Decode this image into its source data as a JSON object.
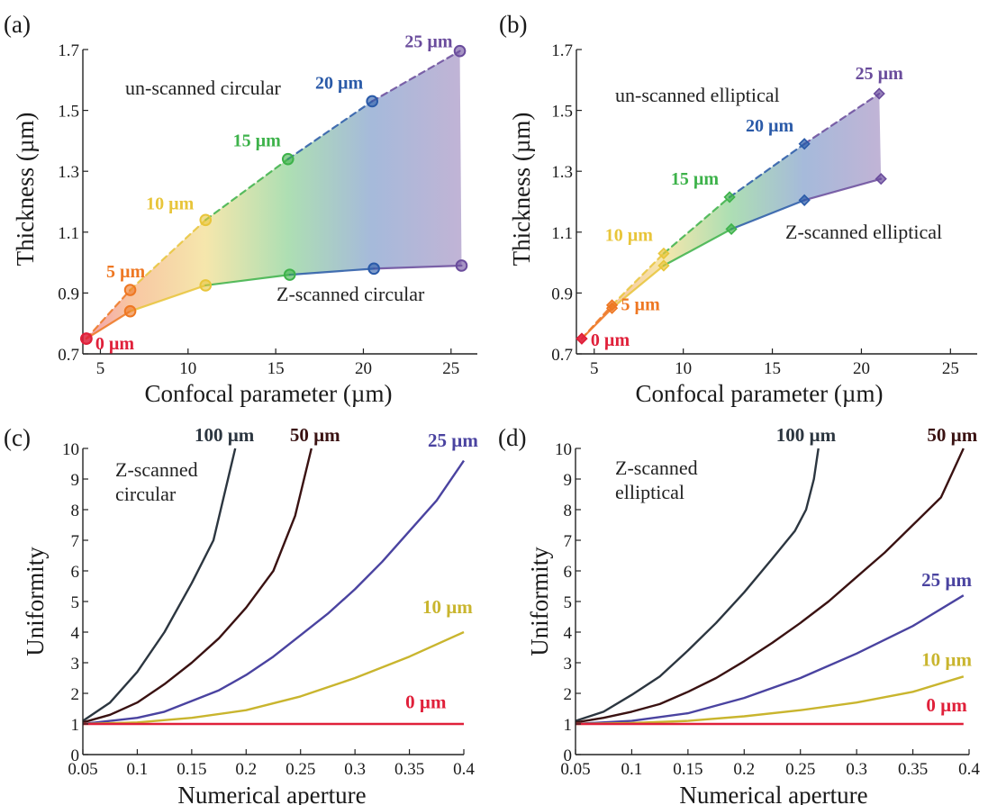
{
  "panels": [
    {
      "id": "a",
      "label": "(a)",
      "type": "line",
      "xlabel": "Confocal parameter (µm)",
      "ylabel": "Thickness (µm)",
      "xlim": [
        4,
        26.5
      ],
      "ylim": [
        0.7,
        1.7
      ],
      "xticks": [
        5,
        10,
        15,
        20,
        25
      ],
      "yticks": [
        0.7,
        0.9,
        1.1,
        1.3,
        1.5,
        1.7
      ],
      "yticks_labels": [
        "0.7",
        "0.9",
        "1.1",
        "1.3",
        "1.5",
        "1.7"
      ],
      "marker": "circle",
      "series": [
        {
          "name": "un-scanned circular",
          "style": "dashed",
          "x": [
            4.2,
            6.7,
            11.0,
            15.7,
            20.5,
            25.5
          ],
          "y": [
            0.75,
            0.91,
            1.14,
            1.34,
            1.53,
            1.695
          ]
        },
        {
          "name": "Z-scanned circular",
          "style": "solid",
          "x": [
            4.2,
            6.7,
            11.0,
            15.8,
            20.6,
            25.6
          ],
          "y": [
            0.75,
            0.84,
            0.925,
            0.96,
            0.98,
            0.99
          ]
        }
      ],
      "point_labels": [
        "0 µm",
        "5 µm",
        "10 µm",
        "15 µm",
        "20 µm",
        "25 µm"
      ],
      "colors": [
        "#e0203a",
        "#ee7722",
        "#e8c53a",
        "#3db24a",
        "#2a5aa8",
        "#6a4c9c"
      ]
    },
    {
      "id": "b",
      "label": "(b)",
      "type": "line",
      "xlabel": "Confocal parameter (µm)",
      "ylabel": "Thickness (µm)",
      "xlim": [
        4,
        26.5
      ],
      "ylim": [
        0.7,
        1.7
      ],
      "xticks": [
        5,
        10,
        15,
        20,
        25
      ],
      "yticks": [
        0.7,
        0.9,
        1.1,
        1.3,
        1.5,
        1.7
      ],
      "yticks_labels": [
        "0.7",
        "0.9",
        "1.1",
        "1.3",
        "1.5",
        "1.7"
      ],
      "marker": "diamond",
      "series": [
        {
          "name": "un-scanned elliptical",
          "style": "dashed",
          "x": [
            4.3,
            6.0,
            8.9,
            12.6,
            16.8,
            21.0
          ],
          "y": [
            0.75,
            0.86,
            1.03,
            1.215,
            1.39,
            1.555
          ]
        },
        {
          "name": "Z-scanned elliptical",
          "style": "solid",
          "x": [
            4.3,
            6.0,
            8.9,
            12.7,
            16.8,
            21.1
          ],
          "y": [
            0.75,
            0.85,
            0.99,
            1.11,
            1.205,
            1.275
          ]
        }
      ],
      "point_labels": [
        "0 µm",
        "5 µm",
        "10 µm",
        "15 µm",
        "20 µm",
        "25 µm"
      ],
      "colors": [
        "#e0203a",
        "#ee7722",
        "#e8c53a",
        "#3db24a",
        "#2a5aa8",
        "#6a4c9c"
      ]
    },
    {
      "id": "c",
      "label": "(c)",
      "type": "line",
      "annotation": "Z-scanned\ncircular",
      "xlabel": "Numerical aperture",
      "ylabel": "Uniformity",
      "xlim": [
        0.05,
        0.4
      ],
      "ylim": [
        0,
        10
      ],
      "xticks": [
        0.05,
        0.1,
        0.15,
        0.2,
        0.25,
        0.3,
        0.35,
        0.4
      ],
      "xticks_labels": [
        "0.05",
        "0.1",
        "0.15",
        "0.2",
        "0.25",
        "0.3",
        "0.35",
        "0.4"
      ],
      "yticks": [
        0,
        1,
        2,
        3,
        4,
        5,
        6,
        7,
        8,
        9,
        10
      ],
      "series": [
        {
          "name": "100 µm",
          "color": "#2c3640",
          "x": [
            0.05,
            0.075,
            0.1,
            0.125,
            0.15,
            0.17,
            0.18,
            0.19
          ],
          "y": [
            1.1,
            1.7,
            2.7,
            4.0,
            5.6,
            7.0,
            8.5,
            10.0
          ]
        },
        {
          "name": "50 µm",
          "color": "#3a1212",
          "x": [
            0.05,
            0.075,
            0.1,
            0.125,
            0.15,
            0.175,
            0.2,
            0.225,
            0.245,
            0.26
          ],
          "y": [
            1.05,
            1.3,
            1.7,
            2.3,
            3.0,
            3.8,
            4.8,
            6.0,
            7.8,
            10.0
          ]
        },
        {
          "name": "25 µm",
          "color": "#4a43a0",
          "x": [
            0.05,
            0.075,
            0.1,
            0.125,
            0.15,
            0.175,
            0.2,
            0.225,
            0.25,
            0.275,
            0.3,
            0.325,
            0.35,
            0.375,
            0.4
          ],
          "y": [
            1.0,
            1.1,
            1.2,
            1.4,
            1.75,
            2.1,
            2.6,
            3.2,
            3.9,
            4.6,
            5.4,
            6.3,
            7.3,
            8.3,
            9.6
          ]
        },
        {
          "name": "10 µm",
          "color": "#c9b52e",
          "x": [
            0.05,
            0.1,
            0.15,
            0.2,
            0.25,
            0.3,
            0.35,
            0.4
          ],
          "y": [
            1.0,
            1.05,
            1.2,
            1.45,
            1.9,
            2.5,
            3.2,
            4.0
          ]
        },
        {
          "name": "0 µm",
          "color": "#e0203a",
          "x": [
            0.05,
            0.4
          ],
          "y": [
            1.0,
            1.0
          ]
        }
      ]
    },
    {
      "id": "d",
      "label": "(d)",
      "type": "line",
      "annotation": "Z-scanned\nelliptical",
      "xlabel": "Numerical aperture",
      "ylabel": "Uniformity",
      "xlim": [
        0.05,
        0.4
      ],
      "ylim": [
        0,
        10
      ],
      "xticks": [
        0.05,
        0.1,
        0.15,
        0.2,
        0.25,
        0.3,
        0.35,
        0.4
      ],
      "xticks_labels": [
        "0.05",
        "0.1",
        "0.15",
        "0.2",
        "0.25",
        "0.3",
        "0.35",
        "0.4"
      ],
      "yticks": [
        0,
        1,
        2,
        3,
        4,
        5,
        6,
        7,
        8,
        9,
        10
      ],
      "series": [
        {
          "name": "100 µm",
          "color": "#2c3640",
          "x": [
            0.05,
            0.075,
            0.1,
            0.125,
            0.15,
            0.175,
            0.2,
            0.225,
            0.245,
            0.255,
            0.262,
            0.266
          ],
          "y": [
            1.1,
            1.4,
            1.95,
            2.55,
            3.4,
            4.3,
            5.3,
            6.4,
            7.3,
            8.0,
            9.0,
            10.0
          ]
        },
        {
          "name": "50 µm",
          "color": "#3a1212",
          "x": [
            0.05,
            0.075,
            0.1,
            0.125,
            0.15,
            0.175,
            0.2,
            0.225,
            0.25,
            0.275,
            0.3,
            0.325,
            0.35,
            0.375,
            0.385,
            0.395
          ],
          "y": [
            1.05,
            1.2,
            1.4,
            1.65,
            2.05,
            2.5,
            3.05,
            3.65,
            4.3,
            5.0,
            5.8,
            6.6,
            7.5,
            8.4,
            9.2,
            10.0
          ]
        },
        {
          "name": "25 µm",
          "color": "#4a43a0",
          "x": [
            0.05,
            0.1,
            0.15,
            0.2,
            0.25,
            0.3,
            0.35,
            0.395
          ],
          "y": [
            1.0,
            1.1,
            1.35,
            1.85,
            2.5,
            3.3,
            4.2,
            5.2
          ]
        },
        {
          "name": "10 µm",
          "color": "#c9b52e",
          "x": [
            0.05,
            0.1,
            0.15,
            0.2,
            0.25,
            0.3,
            0.35,
            0.395
          ],
          "y": [
            1.0,
            1.03,
            1.1,
            1.25,
            1.45,
            1.7,
            2.05,
            2.55
          ]
        },
        {
          "name": "0 µm",
          "color": "#e0203a",
          "x": [
            0.05,
            0.395
          ],
          "y": [
            1.0,
            1.0
          ]
        }
      ]
    }
  ]
}
